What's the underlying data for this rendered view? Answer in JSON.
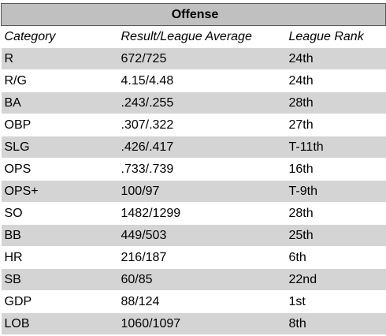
{
  "table": {
    "title": "Offense",
    "headers": [
      "Category",
      "Result/League Average",
      "League Rank"
    ],
    "rows": [
      {
        "category": "R",
        "result": "672/725",
        "rank": "24th"
      },
      {
        "category": "R/G",
        "result": "4.15/4.48",
        "rank": "24th"
      },
      {
        "category": "BA",
        "result": ".243/.255",
        "rank": "28th"
      },
      {
        "category": "OBP",
        "result": ".307/.322",
        "rank": "27th"
      },
      {
        "category": "SLG",
        "result": ".426/.417",
        "rank": "T-11th"
      },
      {
        "category": "OPS",
        "result": ".733/.739",
        "rank": "16th"
      },
      {
        "category": "OPS+",
        "result": "100/97",
        "rank": "T-9th"
      },
      {
        "category": "SO",
        "result": "1482/1299",
        "rank": "28th"
      },
      {
        "category": "BB",
        "result": "449/503",
        "rank": "25th"
      },
      {
        "category": "HR",
        "result": "216/187",
        "rank": "6th"
      },
      {
        "category": "SB",
        "result": "60/85",
        "rank": "22nd"
      },
      {
        "category": "GDP",
        "result": "88/124",
        "rank": "1st"
      },
      {
        "category": "LOB",
        "result": "1060/1097",
        "rank": "8th"
      }
    ]
  },
  "colors": {
    "title_bg": "#c0c0c0",
    "row_shade": "#d4d4d4",
    "row_plain": "#ffffff"
  }
}
